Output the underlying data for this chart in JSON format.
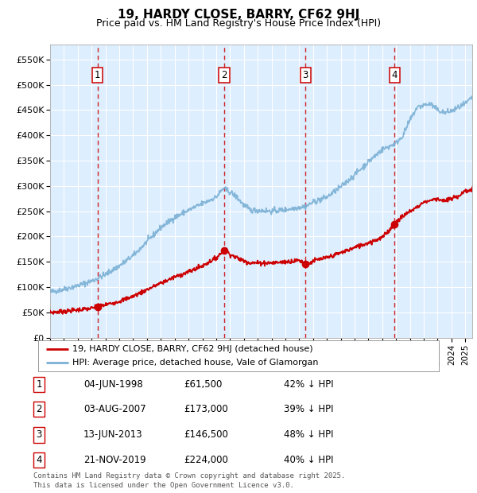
{
  "title": "19, HARDY CLOSE, BARRY, CF62 9HJ",
  "subtitle": "Price paid vs. HM Land Registry's House Price Index (HPI)",
  "ylabel_ticks": [
    "£0",
    "£50K",
    "£100K",
    "£150K",
    "£200K",
    "£250K",
    "£300K",
    "£350K",
    "£400K",
    "£450K",
    "£500K",
    "£550K"
  ],
  "ytick_values": [
    0,
    50000,
    100000,
    150000,
    200000,
    250000,
    300000,
    350000,
    400000,
    450000,
    500000,
    550000
  ],
  "ylim": [
    0,
    580000
  ],
  "xlim_start": 1995.0,
  "xlim_end": 2025.5,
  "background_color": "#ddeeff",
  "grid_color": "#ffffff",
  "sale_dates": [
    1998.42,
    2007.58,
    2013.45,
    2019.89
  ],
  "sale_prices": [
    61500,
    173000,
    146500,
    224000
  ],
  "sale_labels": [
    "1",
    "2",
    "3",
    "4"
  ],
  "legend_line1": "19, HARDY CLOSE, BARRY, CF62 9HJ (detached house)",
  "legend_line2": "HPI: Average price, detached house, Vale of Glamorgan",
  "table_rows": [
    [
      "1",
      "04-JUN-1998",
      "£61,500",
      "42% ↓ HPI"
    ],
    [
      "2",
      "03-AUG-2007",
      "£173,000",
      "39% ↓ HPI"
    ],
    [
      "3",
      "13-JUN-2013",
      "£146,500",
      "48% ↓ HPI"
    ],
    [
      "4",
      "21-NOV-2019",
      "£224,000",
      "40% ↓ HPI"
    ]
  ],
  "footer": "Contains HM Land Registry data © Crown copyright and database right 2025.\nThis data is licensed under the Open Government Licence v3.0.",
  "red_color": "#cc0000",
  "blue_color": "#7ab0d4",
  "vline_color": "#cc0000",
  "hpi_key_years": [
    1995,
    1996,
    1997,
    1998,
    1999,
    2000,
    2001,
    2002,
    2003,
    2004,
    2005,
    2006,
    2007,
    2007.5,
    2008,
    2008.5,
    2009,
    2009.5,
    2010,
    2011,
    2012,
    2013,
    2013.5,
    2014,
    2015,
    2016,
    2017,
    2018,
    2019,
    2019.5,
    2020,
    2020.5,
    2021,
    2021.5,
    2022,
    2022.5,
    2023,
    2023.5,
    2024,
    2024.5,
    2025,
    2025.5
  ],
  "hpi_key_vals": [
    90000,
    96000,
    103000,
    112000,
    125000,
    142000,
    162000,
    190000,
    218000,
    238000,
    252000,
    265000,
    278000,
    295000,
    288000,
    278000,
    262000,
    252000,
    252000,
    250000,
    253000,
    258000,
    260000,
    268000,
    278000,
    298000,
    322000,
    348000,
    372000,
    378000,
    385000,
    400000,
    430000,
    455000,
    460000,
    462000,
    450000,
    445000,
    448000,
    455000,
    462000,
    475000
  ],
  "red_key_years": [
    1995,
    1996,
    1997,
    1998,
    1998.42,
    1999,
    2000,
    2001,
    2002,
    2003,
    2004,
    2005,
    2006,
    2007,
    2007.58,
    2007.8,
    2008,
    2008.5,
    2009,
    2009.5,
    2010,
    2011,
    2012,
    2013,
    2013.45,
    2013.8,
    2014,
    2015,
    2016,
    2017,
    2018,
    2019,
    2019.89,
    2020,
    2020.5,
    2021,
    2021.5,
    2022,
    2022.5,
    2023,
    2023.5,
    2024,
    2024.5,
    2025,
    2025.5
  ],
  "red_key_vals": [
    50000,
    52000,
    55000,
    58000,
    61500,
    65000,
    72000,
    82000,
    95000,
    108000,
    120000,
    130000,
    142000,
    158000,
    173000,
    170000,
    165000,
    158000,
    152000,
    148000,
    148000,
    148000,
    150000,
    153000,
    146500,
    148000,
    152000,
    158000,
    168000,
    178000,
    188000,
    198000,
    224000,
    230000,
    240000,
    250000,
    258000,
    268000,
    272000,
    275000,
    270000,
    275000,
    280000,
    290000,
    292000
  ]
}
